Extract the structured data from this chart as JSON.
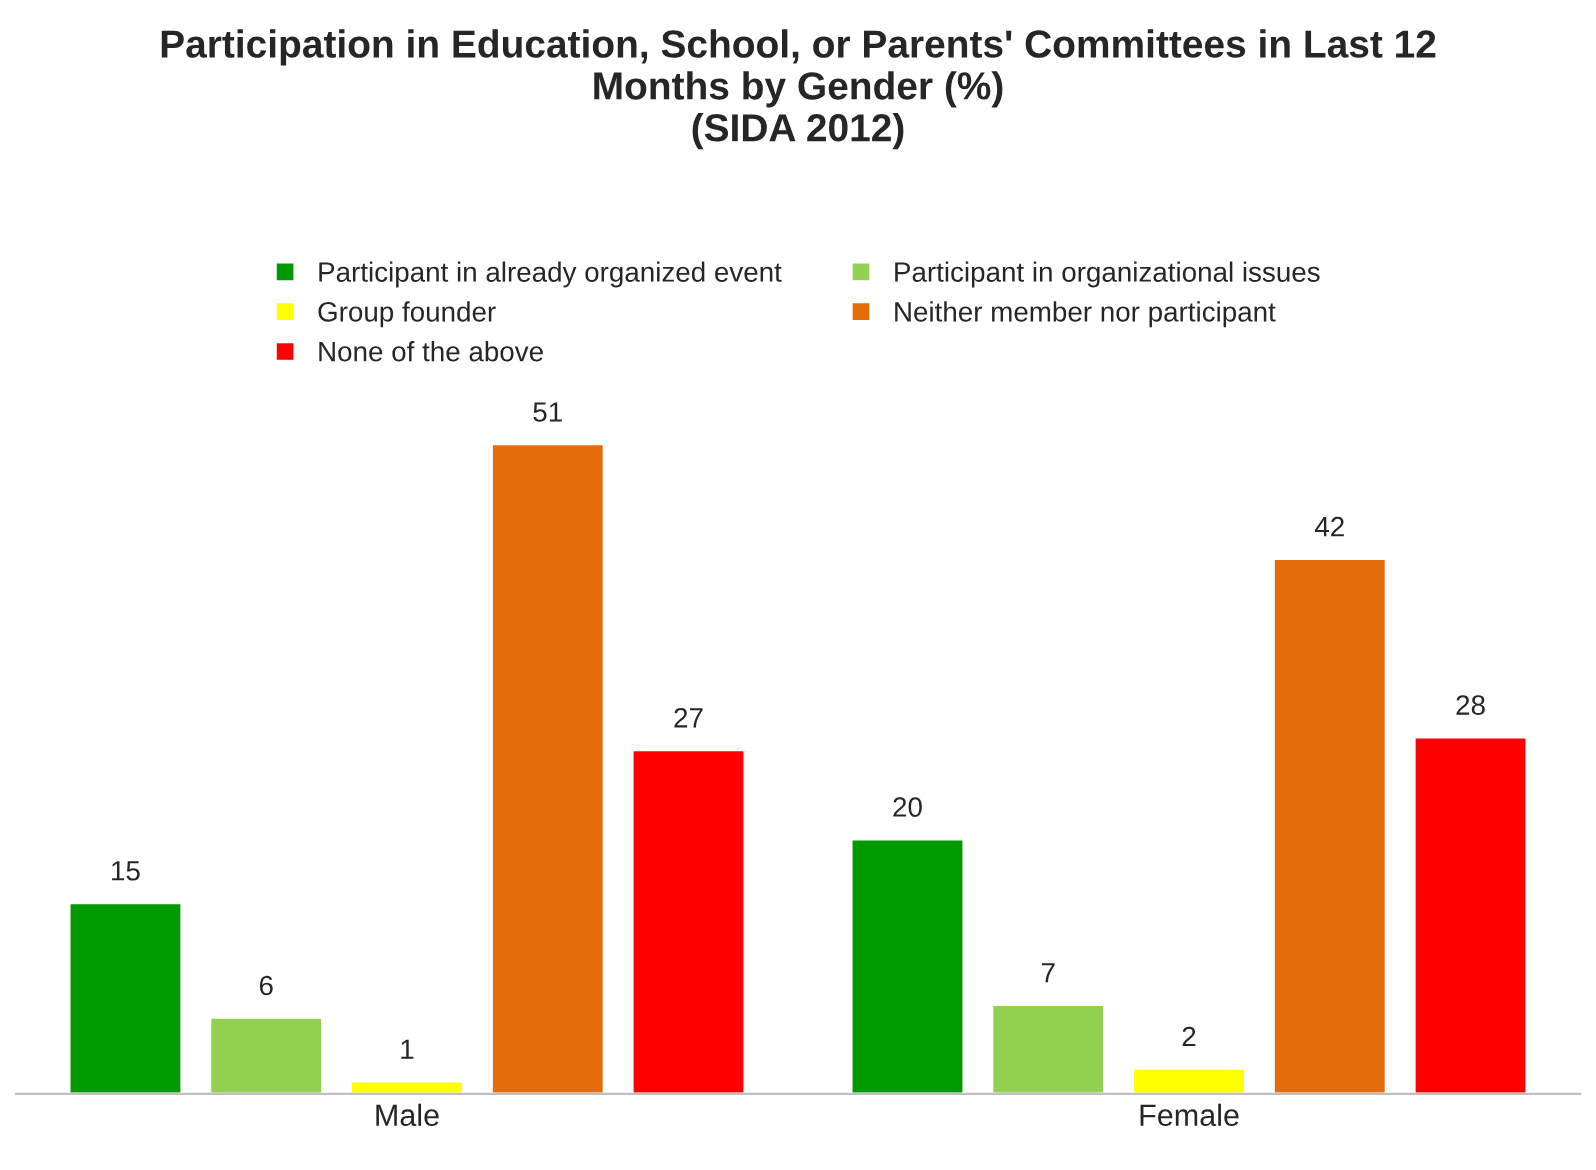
{
  "chart_data": {
    "type": "bar",
    "title": "Participation in Education, School, or Parents' Committees in Last 12\nMonths by Gender (%)\n(SIDA 2012)",
    "categories": [
      "Male",
      "Female"
    ],
    "series": [
      {
        "name": "Participant in already organized event",
        "color": "#009900",
        "values": [
          15,
          20
        ]
      },
      {
        "name": "Participant in organizational issues",
        "color": "#92d050",
        "values": [
          6,
          7
        ]
      },
      {
        "name": "Group founder",
        "color": "#ffff00",
        "values": [
          1,
          2
        ]
      },
      {
        "name": "Neither member nor participant",
        "color": "#e46c0a",
        "values": [
          51,
          42
        ]
      },
      {
        "name": "None of the above",
        "color": "#ff0000",
        "values": [
          27,
          28
        ]
      }
    ],
    "data_labels": true,
    "legend": "top"
  }
}
